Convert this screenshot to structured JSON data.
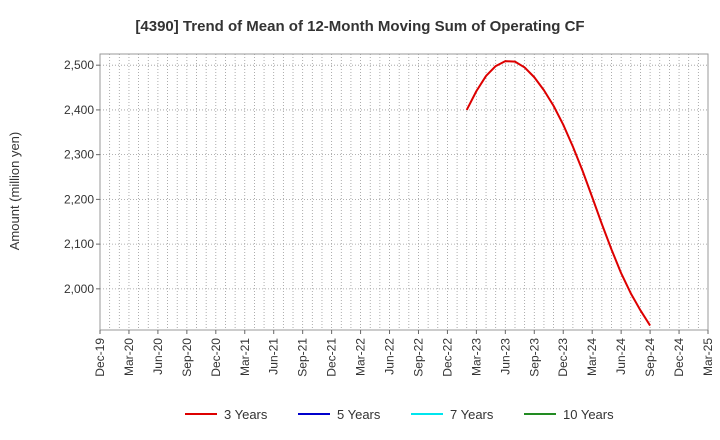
{
  "chart_data": {
    "type": "line",
    "title": "[4390]  Trend of Mean of 12-Month Moving Sum of Operating CF",
    "xlabel": "",
    "ylabel": "Amount (million yen)",
    "x_ticks": [
      "Dec-19",
      "Mar-20",
      "Jun-20",
      "Sep-20",
      "Dec-20",
      "Mar-21",
      "Jun-21",
      "Sep-21",
      "Dec-21",
      "Mar-22",
      "Jun-22",
      "Sep-22",
      "Dec-22",
      "Mar-23",
      "Jun-23",
      "Sep-23",
      "Dec-23",
      "Mar-24",
      "Jun-24",
      "Sep-24",
      "Dec-24",
      "Mar-25"
    ],
    "xlim": [
      "2019-12",
      "2025-03"
    ],
    "y_ticks": [
      2000,
      2100,
      2200,
      2300,
      2400,
      2500
    ],
    "ylim": [
      1908,
      2525
    ],
    "grid": true,
    "legend_position": "bottom",
    "series": [
      {
        "name": "3 Years",
        "color": "#dd0000",
        "points": [
          [
            "2023-02",
            2400
          ],
          [
            "2023-03",
            2442
          ],
          [
            "2023-04",
            2476
          ],
          [
            "2023-05",
            2498
          ],
          [
            "2023-06",
            2509
          ],
          [
            "2023-07",
            2508
          ],
          [
            "2023-08",
            2495
          ],
          [
            "2023-09",
            2473
          ],
          [
            "2023-10",
            2444
          ],
          [
            "2023-11",
            2409
          ],
          [
            "2023-12",
            2367
          ],
          [
            "2024-01",
            2318
          ],
          [
            "2024-02",
            2264
          ],
          [
            "2024-03",
            2205
          ],
          [
            "2024-04",
            2145
          ],
          [
            "2024-05",
            2088
          ],
          [
            "2024-06",
            2035
          ],
          [
            "2024-07",
            1990
          ],
          [
            "2024-08",
            1952
          ],
          [
            "2024-09",
            1918
          ]
        ]
      },
      {
        "name": "5 Years",
        "color": "#0000cc",
        "points": []
      },
      {
        "name": "7 Years",
        "color": "#00e5ee",
        "points": []
      },
      {
        "name": "10 Years",
        "color": "#228b22",
        "points": []
      }
    ]
  }
}
